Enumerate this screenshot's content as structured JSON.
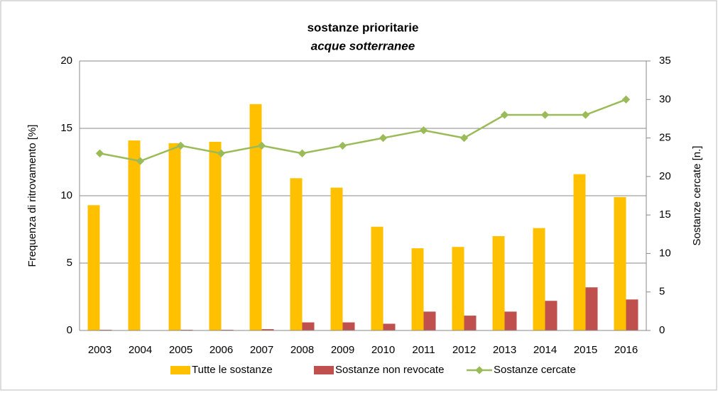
{
  "chart_data": {
    "type": "bar",
    "title": "sostanze prioritarie",
    "subtitle": "acque sotterranee",
    "y_label": "Frequenza di ritrovamento [%]",
    "y2_label": "Sostanze cercate [n.]",
    "categories": [
      "2003",
      "2004",
      "2005",
      "2006",
      "2007",
      "2008",
      "2009",
      "2010",
      "2011",
      "2012",
      "2013",
      "2014",
      "2015",
      "2016"
    ],
    "series": [
      {
        "name": "Tutte le sostanze",
        "type": "bar",
        "color": "#ffc000",
        "values": [
          9.3,
          14.1,
          13.9,
          14.0,
          16.8,
          11.3,
          10.6,
          7.7,
          6.1,
          6.2,
          7.0,
          7.6,
          11.6,
          9.9
        ]
      },
      {
        "name": "Sostanze non revocate",
        "type": "bar",
        "color": "#c0504d",
        "values": [
          0.05,
          0,
          0.05,
          0.05,
          0.1,
          0.6,
          0.6,
          0.5,
          1.4,
          1.1,
          1.4,
          2.2,
          3.2,
          2.3
        ]
      },
      {
        "name": "Sostanze cercate",
        "type": "line",
        "axis": "y2",
        "color": "#9bbb59",
        "values": [
          23,
          22,
          24,
          23,
          24,
          23,
          24,
          25,
          26,
          25,
          28,
          28,
          28,
          30
        ]
      }
    ],
    "ylim": [
      0,
      20
    ],
    "yticks": [
      0,
      5,
      10,
      15,
      20
    ],
    "y2lim": [
      0,
      35
    ],
    "y2ticks": [
      0,
      5,
      10,
      15,
      20,
      25,
      30,
      35
    ],
    "grid": true,
    "legend": "bottom"
  }
}
